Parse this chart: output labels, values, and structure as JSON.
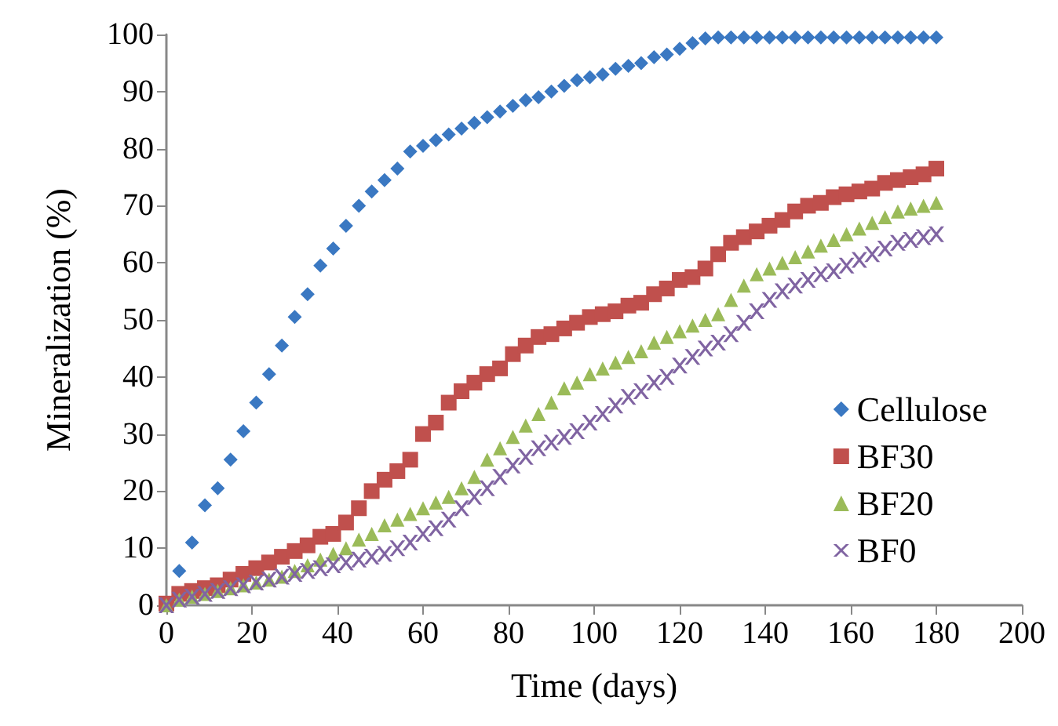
{
  "chart_data": {
    "type": "scatter",
    "xlabel": "Time (days)",
    "ylabel": "Mineralization (%)",
    "x": [
      0,
      3,
      6,
      9,
      12,
      15,
      18,
      21,
      24,
      27,
      30,
      33,
      36,
      39,
      42,
      45,
      48,
      51,
      54,
      57,
      60,
      63,
      66,
      69,
      72,
      75,
      78,
      81,
      84,
      87,
      90,
      93,
      96,
      99,
      102,
      105,
      108,
      111,
      114,
      117,
      120,
      123,
      126,
      129,
      132,
      135,
      138,
      141,
      144,
      147,
      150,
      153,
      156,
      159,
      162,
      165,
      168,
      171,
      174,
      177,
      180
    ],
    "xlim": [
      0,
      200
    ],
    "xticks": [
      0,
      20,
      40,
      60,
      80,
      100,
      120,
      140,
      160,
      180,
      200
    ],
    "ylim": [
      0,
      100
    ],
    "yticks": [
      0,
      10,
      20,
      30,
      40,
      50,
      60,
      70,
      80,
      90,
      100
    ],
    "grid": false,
    "legend": "right",
    "series": [
      {
        "name": "Cellulose",
        "color": "#3a78c2",
        "marker": "diamond",
        "values": [
          null,
          6,
          11,
          17.5,
          20.5,
          25.5,
          30.5,
          35.5,
          40.5,
          45.5,
          50.5,
          54.5,
          59.5,
          62.5,
          66.5,
          70,
          72.5,
          74.5,
          76.5,
          79.5,
          80.5,
          81.5,
          82.5,
          83.5,
          84.5,
          85.5,
          86.5,
          87.5,
          88.5,
          89,
          90,
          91,
          92,
          92.5,
          93,
          94,
          94.5,
          95,
          96,
          96.5,
          97.5,
          98.5,
          99.3,
          99.5,
          99.5,
          99.5,
          99.5,
          99.5,
          99.5,
          99.5,
          99.5,
          99.5,
          99.5,
          99.5,
          99.5,
          99.5,
          99.5,
          99.5,
          99.5,
          99.5,
          99.5
        ]
      },
      {
        "name": "BF30",
        "color": "#c0504d",
        "marker": "square",
        "values": [
          0.3,
          2,
          2.5,
          3,
          3.5,
          4.5,
          5.5,
          6.5,
          7.5,
          8.5,
          9.5,
          10.5,
          12,
          12.5,
          14.5,
          17,
          20,
          22,
          23.5,
          25.5,
          30,
          32,
          35.5,
          37.5,
          39,
          40.5,
          41.5,
          44,
          45.5,
          47,
          47.5,
          48.5,
          49.5,
          50.5,
          51,
          51.5,
          52.5,
          53,
          54.5,
          55.5,
          57,
          57.5,
          59,
          61.5,
          63.5,
          64.5,
          65.5,
          66.5,
          67.5,
          69,
          70,
          70.5,
          71.5,
          72,
          72.5,
          73,
          74,
          74.5,
          75,
          75.5,
          76.5
        ]
      },
      {
        "name": "BF20",
        "color": "#9bbb59",
        "marker": "triangle",
        "values": [
          0,
          1,
          1.5,
          2,
          2.5,
          3,
          3.5,
          4,
          4.5,
          5,
          6,
          7,
          8,
          9,
          10,
          11.5,
          12.5,
          14,
          15,
          16,
          17,
          18,
          19,
          20.5,
          22.5,
          25.5,
          27.5,
          29.5,
          31.5,
          33.5,
          35.5,
          38,
          39,
          40.5,
          41.5,
          42.5,
          43.5,
          44.5,
          46,
          47,
          48,
          49,
          50,
          51,
          53.5,
          56,
          58,
          59,
          60,
          61,
          62,
          63,
          64,
          65,
          66,
          67,
          68,
          69,
          69.5,
          70,
          70.5
        ]
      },
      {
        "name": "BF0",
        "color": "#8064a2",
        "marker": "cross",
        "values": [
          0,
          1,
          1.5,
          2,
          2.5,
          3,
          3.5,
          4,
          4.5,
          5,
          5.5,
          6,
          6.5,
          7,
          7.5,
          8,
          8.5,
          9,
          10,
          11,
          12.5,
          13.5,
          15,
          17,
          19,
          20.5,
          22.5,
          24.5,
          26,
          27.5,
          28.5,
          29.5,
          30.5,
          32,
          33.5,
          35,
          36.5,
          37.5,
          39,
          40,
          42,
          43.5,
          45,
          46,
          47.5,
          49.5,
          51.5,
          53.5,
          55,
          56,
          57,
          58,
          58.5,
          59.5,
          60.5,
          61.5,
          62.5,
          63.5,
          64,
          64.5,
          65
        ]
      }
    ]
  }
}
